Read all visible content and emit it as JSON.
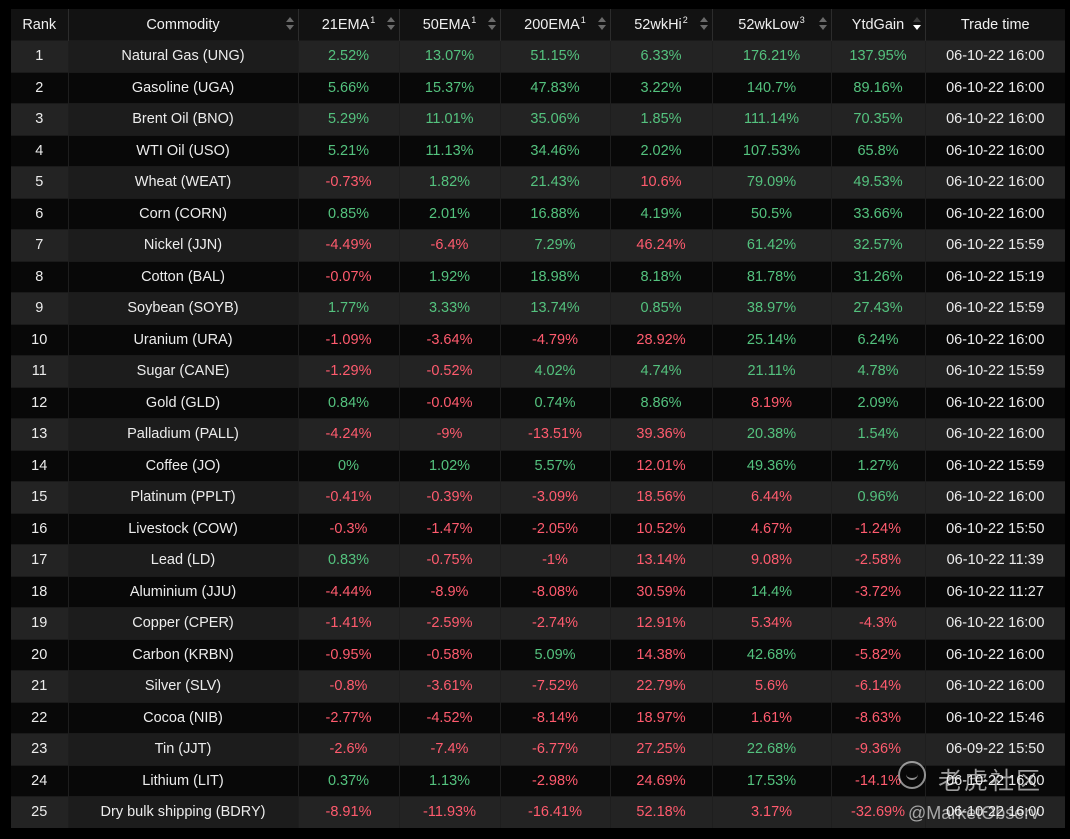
{
  "table": {
    "headers": [
      {
        "label": "Rank",
        "sup": "",
        "sort": "none"
      },
      {
        "label": "Commodity",
        "sup": "",
        "sort": "sortable"
      },
      {
        "label": "21EMA",
        "sup": "1",
        "sort": "sortable"
      },
      {
        "label": "50EMA",
        "sup": "1",
        "sort": "sortable"
      },
      {
        "label": "200EMA",
        "sup": "1",
        "sort": "sortable"
      },
      {
        "label": "52wkHi",
        "sup": "2",
        "sort": "sortable"
      },
      {
        "label": "52wkLow",
        "sup": "3",
        "sort": "sortable"
      },
      {
        "label": "YtdGain",
        "sup": "",
        "sort": "descending"
      },
      {
        "label": "Trade time",
        "sup": "",
        "sort": "none"
      }
    ],
    "rows": [
      {
        "rank": "1",
        "commodity": "Natural Gas (UNG)",
        "ema21": "2.52%",
        "ema50": "13.07%",
        "ema200": "51.15%",
        "hi52": "6.33%",
        "low52": "176.21%",
        "ytd": "137.95%",
        "time": "06-10-22 16:00"
      },
      {
        "rank": "2",
        "commodity": "Gasoline (UGA)",
        "ema21": "5.66%",
        "ema50": "15.37%",
        "ema200": "47.83%",
        "hi52": "3.22%",
        "low52": "140.7%",
        "ytd": "89.16%",
        "time": "06-10-22 16:00"
      },
      {
        "rank": "3",
        "commodity": "Brent Oil (BNO)",
        "ema21": "5.29%",
        "ema50": "11.01%",
        "ema200": "35.06%",
        "hi52": "1.85%",
        "low52": "111.14%",
        "ytd": "70.35%",
        "time": "06-10-22 16:00"
      },
      {
        "rank": "4",
        "commodity": "WTI Oil (USO)",
        "ema21": "5.21%",
        "ema50": "11.13%",
        "ema200": "34.46%",
        "hi52": "2.02%",
        "low52": "107.53%",
        "ytd": "65.8%",
        "time": "06-10-22 16:00"
      },
      {
        "rank": "5",
        "commodity": "Wheat (WEAT)",
        "ema21": "-0.73%",
        "ema50": "1.82%",
        "ema200": "21.43%",
        "hi52": "10.6%",
        "low52": "79.09%",
        "ytd": "49.53%",
        "time": "06-10-22 16:00"
      },
      {
        "rank": "6",
        "commodity": "Corn (CORN)",
        "ema21": "0.85%",
        "ema50": "2.01%",
        "ema200": "16.88%",
        "hi52": "4.19%",
        "low52": "50.5%",
        "ytd": "33.66%",
        "time": "06-10-22 16:00"
      },
      {
        "rank": "7",
        "commodity": "Nickel (JJN)",
        "ema21": "-4.49%",
        "ema50": "-6.4%",
        "ema200": "7.29%",
        "hi52": "46.24%",
        "low52": "61.42%",
        "ytd": "32.57%",
        "time": "06-10-22 15:59"
      },
      {
        "rank": "8",
        "commodity": "Cotton (BAL)",
        "ema21": "-0.07%",
        "ema50": "1.92%",
        "ema200": "18.98%",
        "hi52": "8.18%",
        "low52": "81.78%",
        "ytd": "31.26%",
        "time": "06-10-22 15:19"
      },
      {
        "rank": "9",
        "commodity": "Soybean (SOYB)",
        "ema21": "1.77%",
        "ema50": "3.33%",
        "ema200": "13.74%",
        "hi52": "0.85%",
        "low52": "38.97%",
        "ytd": "27.43%",
        "time": "06-10-22 15:59"
      },
      {
        "rank": "10",
        "commodity": "Uranium (URA)",
        "ema21": "-1.09%",
        "ema50": "-3.64%",
        "ema200": "-4.79%",
        "hi52": "28.92%",
        "low52": "25.14%",
        "ytd": "6.24%",
        "time": "06-10-22 16:00"
      },
      {
        "rank": "11",
        "commodity": "Sugar (CANE)",
        "ema21": "-1.29%",
        "ema50": "-0.52%",
        "ema200": "4.02%",
        "hi52": "4.74%",
        "low52": "21.11%",
        "ytd": "4.78%",
        "time": "06-10-22 15:59"
      },
      {
        "rank": "12",
        "commodity": "Gold (GLD)",
        "ema21": "0.84%",
        "ema50": "-0.04%",
        "ema200": "0.74%",
        "hi52": "8.86%",
        "low52": "8.19%",
        "ytd": "2.09%",
        "time": "06-10-22 16:00"
      },
      {
        "rank": "13",
        "commodity": "Palladium (PALL)",
        "ema21": "-4.24%",
        "ema50": "-9%",
        "ema200": "-13.51%",
        "hi52": "39.36%",
        "low52": "20.38%",
        "ytd": "1.54%",
        "time": "06-10-22 16:00"
      },
      {
        "rank": "14",
        "commodity": "Coffee (JO)",
        "ema21": "0%",
        "ema50": "1.02%",
        "ema200": "5.57%",
        "hi52": "12.01%",
        "low52": "49.36%",
        "ytd": "1.27%",
        "time": "06-10-22 15:59"
      },
      {
        "rank": "15",
        "commodity": "Platinum (PPLT)",
        "ema21": "-0.41%",
        "ema50": "-0.39%",
        "ema200": "-3.09%",
        "hi52": "18.56%",
        "low52": "6.44%",
        "ytd": "0.96%",
        "time": "06-10-22 16:00"
      },
      {
        "rank": "16",
        "commodity": "Livestock (COW)",
        "ema21": "-0.3%",
        "ema50": "-1.47%",
        "ema200": "-2.05%",
        "hi52": "10.52%",
        "low52": "4.67%",
        "ytd": "-1.24%",
        "time": "06-10-22 15:50"
      },
      {
        "rank": "17",
        "commodity": "Lead (LD)",
        "ema21": "0.83%",
        "ema50": "-0.75%",
        "ema200": "-1%",
        "hi52": "13.14%",
        "low52": "9.08%",
        "ytd": "-2.58%",
        "time": "06-10-22 11:39"
      },
      {
        "rank": "18",
        "commodity": "Aluminium (JJU)",
        "ema21": "-4.44%",
        "ema50": "-8.9%",
        "ema200": "-8.08%",
        "hi52": "30.59%",
        "low52": "14.4%",
        "ytd": "-3.72%",
        "time": "06-10-22 11:27"
      },
      {
        "rank": "19",
        "commodity": "Copper (CPER)",
        "ema21": "-1.41%",
        "ema50": "-2.59%",
        "ema200": "-2.74%",
        "hi52": "12.91%",
        "low52": "5.34%",
        "ytd": "-4.3%",
        "time": "06-10-22 16:00"
      },
      {
        "rank": "20",
        "commodity": "Carbon (KRBN)",
        "ema21": "-0.95%",
        "ema50": "-0.58%",
        "ema200": "5.09%",
        "hi52": "14.38%",
        "low52": "42.68%",
        "ytd": "-5.82%",
        "time": "06-10-22 16:00"
      },
      {
        "rank": "21",
        "commodity": "Silver (SLV)",
        "ema21": "-0.8%",
        "ema50": "-3.61%",
        "ema200": "-7.52%",
        "hi52": "22.79%",
        "low52": "5.6%",
        "ytd": "-6.14%",
        "time": "06-10-22 16:00"
      },
      {
        "rank": "22",
        "commodity": "Cocoa (NIB)",
        "ema21": "-2.77%",
        "ema50": "-4.52%",
        "ema200": "-8.14%",
        "hi52": "18.97%",
        "low52": "1.61%",
        "ytd": "-8.63%",
        "time": "06-10-22 15:46"
      },
      {
        "rank": "23",
        "commodity": "Tin (JJT)",
        "ema21": "-2.6%",
        "ema50": "-7.4%",
        "ema200": "-6.77%",
        "hi52": "27.25%",
        "low52": "22.68%",
        "ytd": "-9.36%",
        "time": "06-09-22 15:50"
      },
      {
        "rank": "24",
        "commodity": "Lithium (LIT)",
        "ema21": "0.37%",
        "ema50": "1.13%",
        "ema200": "-2.98%",
        "hi52": "24.69%",
        "low52": "17.53%",
        "ytd": "-14.1%",
        "time": "06-10-22 16:00"
      },
      {
        "rank": "25",
        "commodity": "Dry bulk shipping (BDRY)",
        "ema21": "-8.91%",
        "ema50": "-11.93%",
        "ema200": "-16.41%",
        "hi52": "52.18%",
        "low52": "3.17%",
        "ytd": "-32.69%",
        "time": "06-10-22 16:00"
      }
    ]
  },
  "colors": {
    "positive": "#54c27e",
    "negative": "#ff5b6e",
    "row_odd": "#232323",
    "row_even": "#080808",
    "header_bg": "#121212"
  },
  "watermark": {
    "brand": "老虎社区",
    "handle": "@MarketObserv",
    "icon": "tiger-logo-icon"
  }
}
